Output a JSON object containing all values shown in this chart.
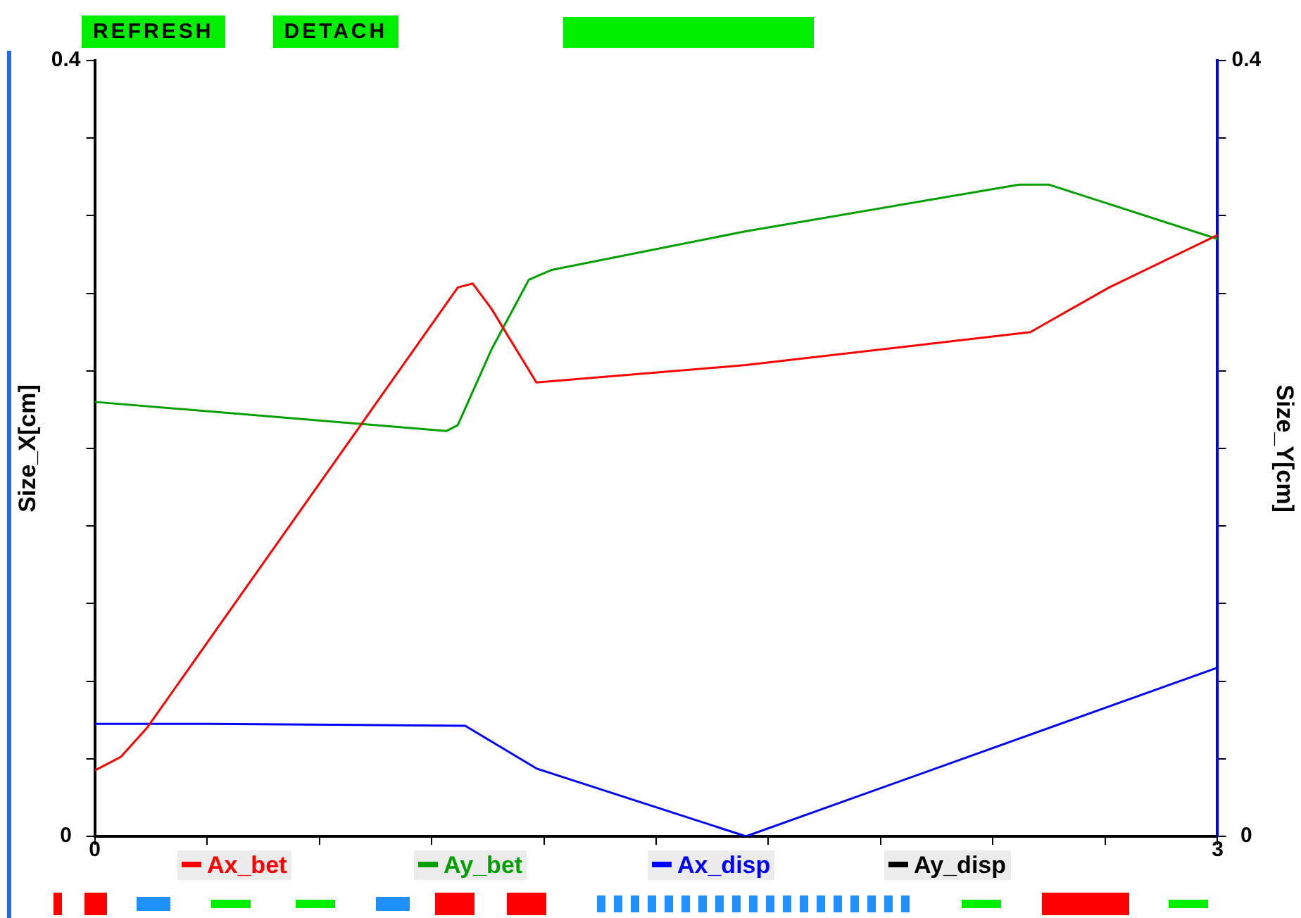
{
  "chart_data": {
    "type": "line",
    "annotations": [
      "REFRESH",
      "DETACH"
    ],
    "ylabel": "Size_X[cm]",
    "y2label": "Size_Y[cm]",
    "xlim": [
      0,
      3
    ],
    "xticks": [
      0,
      {
        "value": 0.3,
        "label": null
      },
      {
        "value": 0.6,
        "label": null
      },
      {
        "value": 0.9,
        "label": null
      },
      {
        "value": 1.2,
        "label": null
      },
      {
        "value": 1.5,
        "label": null
      },
      {
        "value": 1.8,
        "label": null
      },
      {
        "value": 2.1,
        "label": null
      },
      {
        "value": 2.4,
        "label": null
      },
      {
        "value": 2.7,
        "label": null
      },
      3
    ],
    "ylim": [
      0,
      0.4
    ],
    "yticks": [
      0,
      {
        "value": 0.04,
        "label": null
      },
      {
        "value": 0.08,
        "label": null
      },
      {
        "value": 0.12,
        "label": null
      },
      {
        "value": 0.16,
        "label": null
      },
      {
        "value": 0.2,
        "label": null
      },
      {
        "value": 0.24,
        "label": null
      },
      {
        "value": 0.28,
        "label": null
      },
      {
        "value": 0.32,
        "label": null
      },
      {
        "value": 0.36,
        "label": null
      },
      0.4
    ],
    "y2lim": [
      0,
      0.4
    ],
    "y2ticks": [
      0,
      {
        "value": 0.04,
        "label": null
      },
      {
        "value": 0.08,
        "label": null
      },
      {
        "value": 0.12,
        "label": null
      },
      {
        "value": 0.16,
        "label": null
      },
      {
        "value": 0.2,
        "label": null
      },
      {
        "value": 0.24,
        "label": null
      },
      {
        "value": 0.28,
        "label": null
      },
      {
        "value": 0.32,
        "label": null
      },
      {
        "value": 0.36,
        "label": null
      },
      0.4
    ],
    "grid": false,
    "legend": "bottom",
    "marker": "none",
    "line_style": "solid",
    "series": [
      {
        "name": "Ax_bet",
        "color": "#ff0000",
        "x": [
          0,
          0.07,
          0.14,
          0.97,
          1.01,
          1.06,
          1.18,
          1.74,
          2.5,
          2.71,
          3
        ],
        "values": [
          0.034,
          0.041,
          0.056,
          0.283,
          0.285,
          0.272,
          0.234,
          0.243,
          0.26,
          0.283,
          0.31
        ]
      },
      {
        "name": "Ay_bet",
        "color": "#00a000",
        "x": [
          0,
          0.94,
          0.97,
          1.06,
          1.16,
          1.22,
          1.74,
          2.47,
          2.55,
          3
        ],
        "values": [
          0.224,
          0.209,
          0.212,
          0.251,
          0.287,
          0.292,
          0.312,
          0.336,
          0.336,
          0.308
        ]
      },
      {
        "name": "Ax_disp",
        "color": "#0000ff",
        "x": [
          0,
          0.31,
          0.99,
          1.18,
          1.74,
          3
        ],
        "values": [
          0.058,
          0.058,
          0.057,
          0.035,
          0,
          0.087
        ]
      },
      {
        "name": "Ay_disp",
        "color": "#000000",
        "x": [
          0,
          3
        ],
        "values": [
          0,
          0
        ]
      }
    ]
  }
}
